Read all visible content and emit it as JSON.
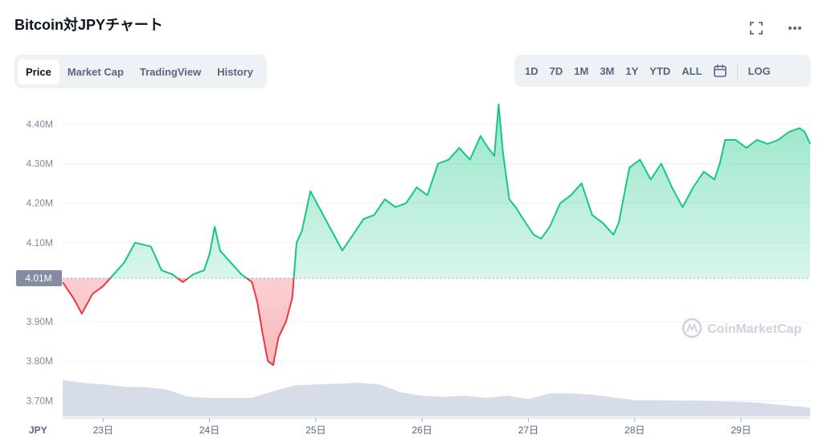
{
  "header": {
    "title": "Bitcoin対JPYチャート"
  },
  "icons": {
    "expand": "fullscreen-icon",
    "more": "more-icon",
    "calendar": "calendar-icon",
    "watermark": "coinmarketcap-logo-icon"
  },
  "tabs": [
    {
      "label": "Price",
      "active": true
    },
    {
      "label": "Market Cap",
      "active": false
    },
    {
      "label": "TradingView",
      "active": false
    },
    {
      "label": "History",
      "active": false
    }
  ],
  "ranges": [
    "1D",
    "7D",
    "1M",
    "3M",
    "1Y",
    "YTD",
    "ALL"
  ],
  "log_label": "LOG",
  "watermark": "CoinMarketCap",
  "colors": {
    "up": "#16c784",
    "down": "#ea3943",
    "volume": "#cfd6e4",
    "grid": "#eff2f5",
    "marker_bg": "#858ca2"
  },
  "chart_data": {
    "type": "line",
    "currency_label": "JPY",
    "baseline_value": 4.01,
    "baseline_label": "4.01M",
    "y_ticks": [
      {
        "value": 4.4,
        "label": "4.40M"
      },
      {
        "value": 4.3,
        "label": "4.30M"
      },
      {
        "value": 4.2,
        "label": "4.20M"
      },
      {
        "value": 4.1,
        "label": "4.10M"
      },
      {
        "value": 3.9,
        "label": "3.90M"
      },
      {
        "value": 3.8,
        "label": "3.80M"
      },
      {
        "value": 3.7,
        "label": "3.70M"
      }
    ],
    "ylim": [
      3.66,
      4.47
    ],
    "xlim": [
      22.62,
      29.65
    ],
    "x_ticks": [
      {
        "value": 23,
        "label": "23日"
      },
      {
        "value": 24,
        "label": "24日"
      },
      {
        "value": 25,
        "label": "25日"
      },
      {
        "value": 26,
        "label": "26日"
      },
      {
        "value": 27,
        "label": "27日"
      },
      {
        "value": 28,
        "label": "28日"
      },
      {
        "value": 29,
        "label": "29日"
      }
    ],
    "series": [
      {
        "x": [
          22.62,
          22.72,
          22.8,
          22.9,
          23.0,
          23.1,
          23.2,
          23.3,
          23.45,
          23.55,
          23.65,
          23.75,
          23.85,
          23.95,
          24.0,
          24.05,
          24.1,
          24.2,
          24.3,
          24.4,
          24.45,
          24.5,
          24.55,
          24.6,
          24.65,
          24.72,
          24.78,
          24.82,
          24.87,
          24.95,
          25.05,
          25.15,
          25.25,
          25.35,
          25.45,
          25.55,
          25.65,
          25.75,
          25.85,
          25.95,
          26.05,
          26.15,
          26.25,
          26.35,
          26.45,
          26.55,
          26.62,
          26.68,
          26.72,
          26.76,
          26.82,
          26.88,
          26.95,
          27.05,
          27.12,
          27.2,
          27.3,
          27.4,
          27.5,
          27.6,
          27.7,
          27.8,
          27.85,
          27.9,
          27.95,
          28.05,
          28.15,
          28.25,
          28.35,
          28.45,
          28.55,
          28.65,
          28.75,
          28.8,
          28.85,
          28.95,
          29.05,
          29.15,
          29.25,
          29.35,
          29.45,
          29.55,
          29.6,
          29.65
        ],
        "y": [
          4.0,
          3.96,
          3.92,
          3.97,
          3.99,
          4.02,
          4.05,
          4.1,
          4.09,
          4.03,
          4.02,
          4.0,
          4.02,
          4.03,
          4.07,
          4.14,
          4.08,
          4.05,
          4.02,
          4.0,
          3.95,
          3.87,
          3.8,
          3.79,
          3.86,
          3.9,
          3.96,
          4.1,
          4.13,
          4.23,
          4.18,
          4.13,
          4.08,
          4.12,
          4.16,
          4.17,
          4.21,
          4.19,
          4.2,
          4.24,
          4.22,
          4.3,
          4.31,
          4.34,
          4.31,
          4.37,
          4.34,
          4.32,
          4.45,
          4.33,
          4.21,
          4.19,
          4.16,
          4.12,
          4.11,
          4.14,
          4.2,
          4.22,
          4.25,
          4.17,
          4.15,
          4.12,
          4.15,
          4.22,
          4.29,
          4.31,
          4.26,
          4.3,
          4.24,
          4.19,
          4.24,
          4.28,
          4.26,
          4.3,
          4.36,
          4.36,
          4.34,
          4.36,
          4.35,
          4.36,
          4.38,
          4.39,
          4.38,
          4.35
        ]
      }
    ],
    "volume": {
      "x": [
        22.62,
        22.8,
        23.0,
        23.2,
        23.4,
        23.6,
        23.8,
        24.0,
        24.2,
        24.4,
        24.6,
        24.8,
        25.0,
        25.2,
        25.4,
        25.6,
        25.8,
        26.0,
        26.2,
        26.4,
        26.6,
        26.8,
        27.0,
        27.2,
        27.4,
        27.6,
        27.8,
        28.0,
        28.2,
        28.4,
        28.6,
        28.8,
        29.0,
        29.2,
        29.4,
        29.65
      ],
      "level": [
        0.65,
        0.6,
        0.57,
        0.53,
        0.52,
        0.48,
        0.35,
        0.33,
        0.33,
        0.33,
        0.45,
        0.55,
        0.57,
        0.58,
        0.6,
        0.57,
        0.43,
        0.37,
        0.35,
        0.37,
        0.33,
        0.37,
        0.31,
        0.41,
        0.41,
        0.39,
        0.34,
        0.29,
        0.29,
        0.28,
        0.28,
        0.27,
        0.26,
        0.24,
        0.2,
        0.16
      ]
    }
  }
}
